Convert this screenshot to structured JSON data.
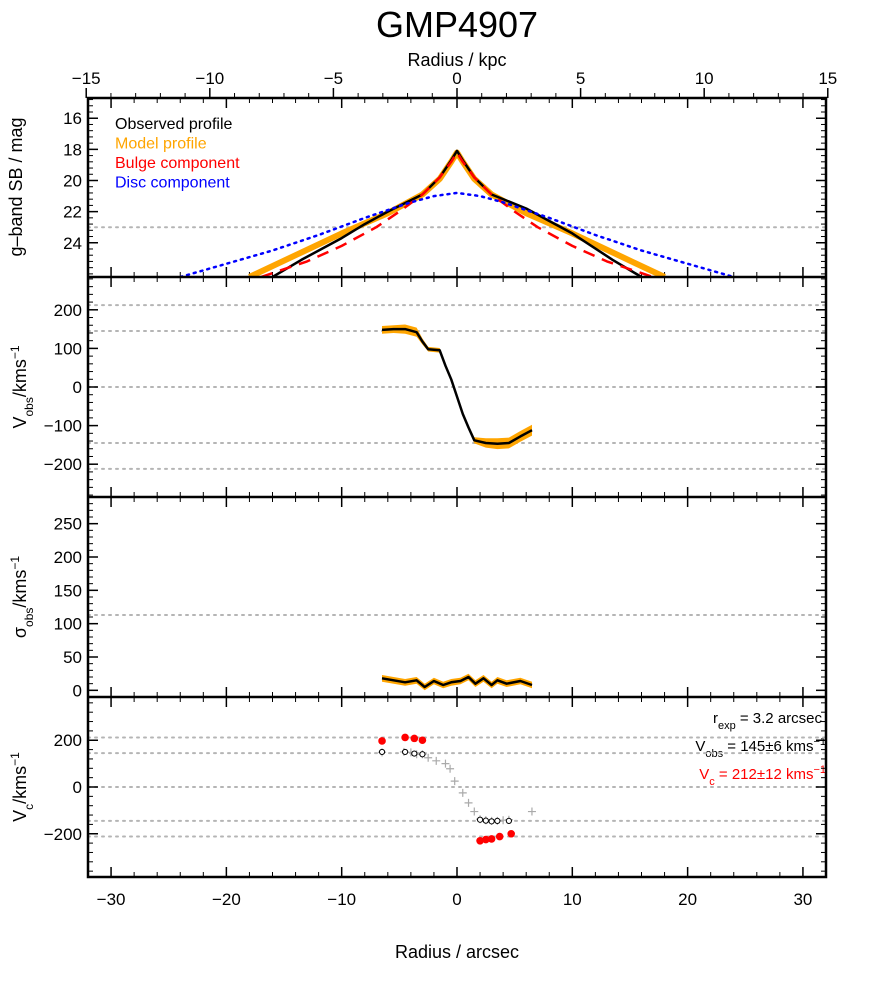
{
  "figure": {
    "title": "GMP4907",
    "top_axis_label": "Radius / kpc",
    "bottom_axis_label": "Radius / arcsec"
  },
  "top_axis": {
    "ticks": [
      -15,
      -10,
      -5,
      0,
      5,
      10,
      15
    ],
    "tick_labels": [
      "−15",
      "−10",
      "−5",
      "0",
      "5",
      "10",
      "15"
    ]
  },
  "bottom_axis": {
    "ticks": [
      -30,
      -20,
      -10,
      0,
      10,
      20,
      30
    ],
    "tick_labels": [
      "−30",
      "−20",
      "−10",
      "0",
      "10",
      "20",
      "30"
    ]
  },
  "panels": {
    "sb": {
      "ylabel": "g–band SB / mag",
      "legend": [
        {
          "label": "Observed profile",
          "color": "#000000"
        },
        {
          "label": "Model profile",
          "color": "#FFA500"
        },
        {
          "label": "Bulge component",
          "color": "#FF0000"
        },
        {
          "label": "Disc component",
          "color": "#0000FF"
        }
      ]
    },
    "vobs": {
      "ylabel_main": "V",
      "ylabel_sub": "obs",
      "ylabel_rest": "/kms",
      "ylabel_sup": "−1"
    },
    "sigma": {
      "ylabel_main": "σ",
      "ylabel_sub": "obs",
      "ylabel_rest": "/kms",
      "ylabel_sup": "−1"
    },
    "vc": {
      "ylabel_main": "V",
      "ylabel_sub": "c",
      "ylabel_rest": "/kms",
      "ylabel_sup": "−1",
      "annotations": {
        "rexp_main": "r",
        "rexp_sub": "exp",
        "rexp_rest": " = 3.2 arcsec",
        "vobs_main": "V",
        "vobs_sub": "obs",
        "vobs_rest": " = 145±6 kms",
        "vobs_sup": "−1",
        "vc_main": "V",
        "vc_sub": "c",
        "vc_rest": " = 212±12 kms",
        "vc_sup": "−1",
        "vc_color": "#FF0000"
      }
    }
  },
  "chart_data": [
    {
      "type": "line",
      "panel": "sb",
      "xlim": [
        -32,
        32
      ],
      "ylim": [
        26.2,
        14.7
      ],
      "yticks": [
        16,
        18,
        20,
        22,
        24
      ],
      "ytick_labels": [
        "16",
        "18",
        "20",
        "22",
        "24"
      ],
      "hlines": [
        23.0
      ],
      "grid": false,
      "legend_position": "top-left",
      "series": [
        {
          "name": "Model profile",
          "color": "#FFA500",
          "style": "solid",
          "width": 6,
          "x": [
            -18,
            -14,
            -10,
            -6,
            -3,
            -1.5,
            -0.5,
            0,
            0.5,
            1.5,
            3,
            6,
            10,
            14,
            18
          ],
          "y": [
            26.2,
            24.8,
            23.4,
            22.1,
            20.9,
            19.9,
            18.8,
            18.2,
            18.8,
            19.9,
            20.9,
            22.1,
            23.4,
            24.8,
            26.2
          ]
        },
        {
          "name": "Observed profile",
          "color": "#000000",
          "style": "solid",
          "width": 2.5,
          "x": [
            -16,
            -13.5,
            -10,
            -8,
            -6,
            -3,
            -1.5,
            -0.5,
            0,
            0.5,
            1.5,
            3,
            6,
            8,
            10,
            13.5,
            16
          ],
          "y": [
            26.2,
            25.1,
            23.7,
            22.8,
            22.0,
            20.9,
            19.8,
            18.7,
            18.1,
            18.7,
            19.8,
            20.9,
            21.8,
            22.6,
            23.4,
            25.1,
            26.2
          ]
        },
        {
          "name": "Bulge component",
          "color": "#FF0000",
          "style": "dashed",
          "width": 2.5,
          "x": [
            -17,
            -13,
            -10,
            -7,
            -5,
            -3,
            -1.5,
            -0.5,
            0,
            0.5,
            1.5,
            3,
            5,
            7,
            10,
            13,
            17
          ],
          "y": [
            26.2,
            25.2,
            24.2,
            23.0,
            22.0,
            20.9,
            19.8,
            18.8,
            18.2,
            18.8,
            19.8,
            20.9,
            22.0,
            23.0,
            24.2,
            25.2,
            26.2
          ]
        },
        {
          "name": "Disc component",
          "color": "#0000FF",
          "style": "dotted",
          "width": 2.5,
          "x": [
            -24,
            -16,
            -12,
            -8,
            -4,
            -2,
            0,
            2,
            4,
            8,
            12,
            16,
            24
          ],
          "y": [
            26.2,
            24.5,
            23.5,
            22.4,
            21.4,
            21.0,
            20.8,
            21.0,
            21.4,
            22.4,
            23.5,
            24.5,
            26.2
          ]
        }
      ]
    },
    {
      "type": "line",
      "panel": "vobs",
      "xlim": [
        -32,
        32
      ],
      "ylim": [
        -285,
        285
      ],
      "yticks": [
        -200,
        -100,
        0,
        100,
        200
      ],
      "ytick_labels": [
        "−200",
        "−100",
        "0",
        "100",
        "200"
      ],
      "hlines": [
        212,
        145,
        0,
        -145,
        -212
      ],
      "series": [
        {
          "name": "",
          "color": "#000000",
          "x": [
            -6.5,
            -5.5,
            -4.5,
            -3.5,
            -3,
            -2.5,
            -1.5,
            -1,
            -0.5,
            0,
            0.5,
            1,
            1.5,
            2.5,
            3.5,
            4.5,
            5.5,
            6.5
          ],
          "y": [
            148,
            150,
            150,
            142,
            118,
            98,
            95,
            55,
            20,
            -25,
            -70,
            -105,
            -138,
            -145,
            -147,
            -145,
            -128,
            -112
          ],
          "band": [
            10,
            10,
            12,
            12,
            8,
            6,
            6,
            6,
            6,
            6,
            6,
            6,
            8,
            12,
            14,
            14,
            14,
            14
          ]
        }
      ]
    },
    {
      "type": "line",
      "panel": "sigma",
      "xlim": [
        -32,
        32
      ],
      "ylim": [
        -10,
        290
      ],
      "yticks": [
        0,
        50,
        100,
        150,
        200,
        250
      ],
      "ytick_labels": [
        "0",
        "50",
        "100",
        "150",
        "200",
        "250"
      ],
      "hlines": [
        113
      ],
      "series": [
        {
          "name": "",
          "color": "#000000",
          "x": [
            -6.5,
            -5.5,
            -4.5,
            -3.5,
            -2.8,
            -2,
            -1.2,
            -0.5,
            0.3,
            1,
            1.6,
            2.3,
            3,
            3.5,
            4.3,
            5.5,
            6.5
          ],
          "y": [
            18,
            15,
            12,
            15,
            5,
            14,
            8,
            12,
            14,
            20,
            10,
            18,
            8,
            15,
            10,
            14,
            8
          ],
          "band": 5
        }
      ]
    },
    {
      "type": "scatter",
      "panel": "vc",
      "xlim": [
        -32,
        32
      ],
      "ylim": [
        -385,
        385
      ],
      "yticks": [
        -200,
        0,
        200
      ],
      "ytick_labels": [
        "−200",
        "0",
        "200"
      ],
      "hlines": [
        212,
        145,
        0,
        -145,
        -212
      ],
      "series": [
        {
          "name": "",
          "marker": "plus",
          "color": "#AAAAAA",
          "x": [
            -6.5,
            -4.6,
            -4.0,
            -3.5,
            -3.0,
            -2.5,
            -1.8,
            -1.0,
            -0.6,
            -0.2,
            0.5,
            1.0,
            1.5,
            2.0,
            2.5,
            3.0,
            3.5,
            4.0,
            4.5,
            6.5
          ],
          "y": [
            148,
            150,
            148,
            140,
            140,
            125,
            112,
            100,
            78,
            25,
            -25,
            -68,
            -105,
            -138,
            -142,
            -145,
            -145,
            -142,
            -140,
            -105
          ]
        },
        {
          "name": "",
          "marker": "open-circle",
          "color": "#000000",
          "x": [
            -6.5,
            -4.5,
            -3.7,
            -3.0,
            2.0,
            2.5,
            3.0,
            3.5,
            4.5
          ],
          "y": [
            150,
            150,
            143,
            140,
            -140,
            -144,
            -147,
            -145,
            -145
          ]
        },
        {
          "name": "",
          "marker": "filled-circle",
          "color": "#FF0000",
          "x": [
            -6.5,
            -4.5,
            -3.7,
            -3.0,
            2.0,
            2.5,
            3.0,
            3.7,
            4.7
          ],
          "y": [
            197,
            212,
            208,
            200,
            -230,
            -225,
            -222,
            -212,
            -200
          ]
        }
      ]
    }
  ]
}
